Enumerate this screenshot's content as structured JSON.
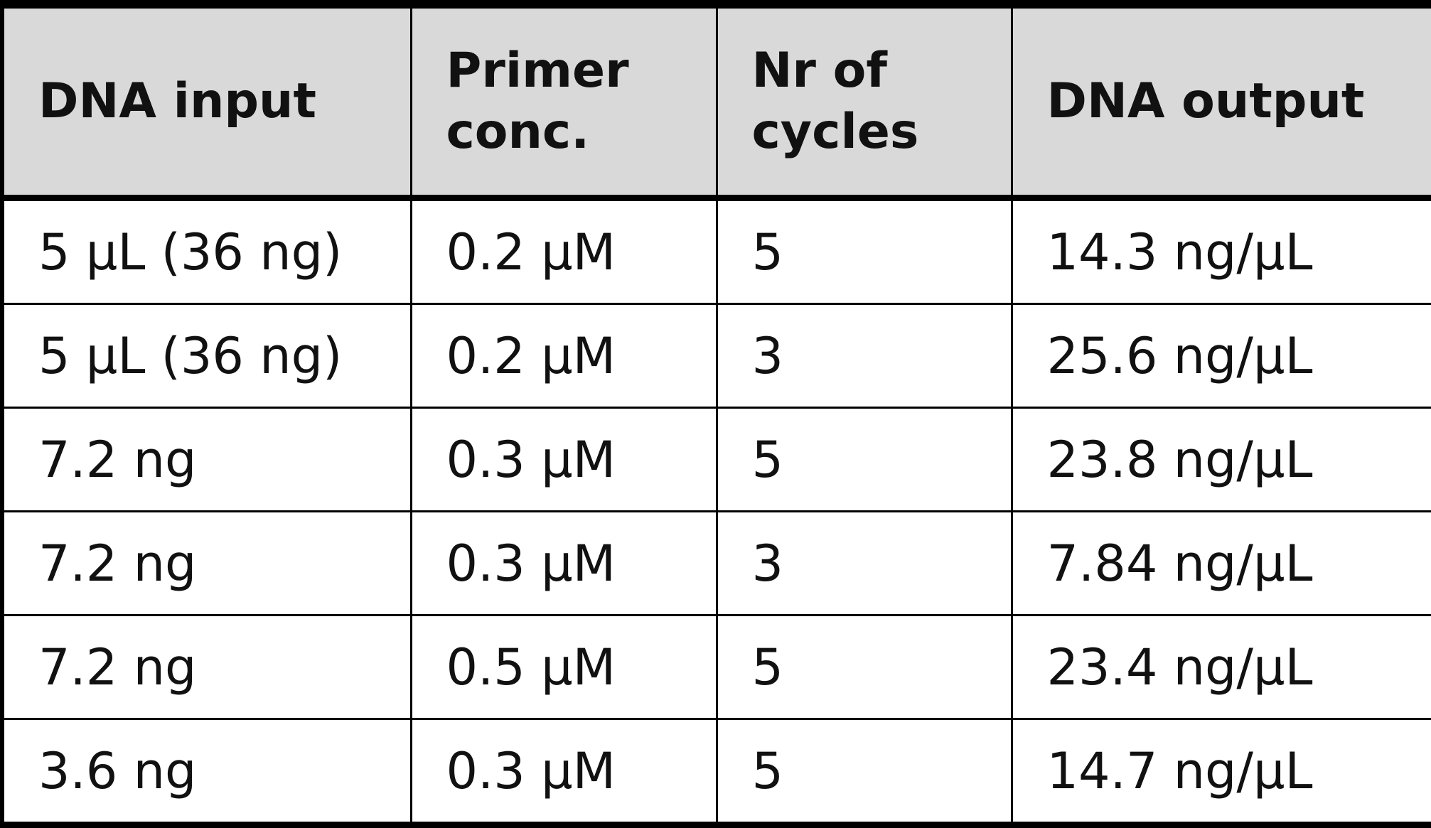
{
  "table": {
    "headers": [
      [
        "DNA input"
      ],
      [
        "Primer",
        "conc."
      ],
      [
        "Nr of",
        "cycles"
      ],
      [
        "DNA output"
      ]
    ],
    "rows": [
      [
        "5 µL (36 ng)",
        "0.2 µM",
        "5",
        "14.3 ng/µL"
      ],
      [
        "5 µL (36 ng)",
        "0.2 µM",
        "3",
        "25.6 ng/µL"
      ],
      [
        "7.2 ng",
        "0.3 µM",
        "5",
        "23.8 ng/µL"
      ],
      [
        "7.2 ng",
        "0.3 µM",
        "3",
        "7.84 ng/µL"
      ],
      [
        "7.2 ng",
        "0.5 µM",
        "5",
        "23.4 ng/µL"
      ],
      [
        "3.6 ng",
        "0.3 µM",
        "5",
        "14.7 ng/µL"
      ]
    ]
  },
  "colors": {
    "header_background": "#d9d9d9",
    "border": "#000000",
    "text": "#111111"
  }
}
